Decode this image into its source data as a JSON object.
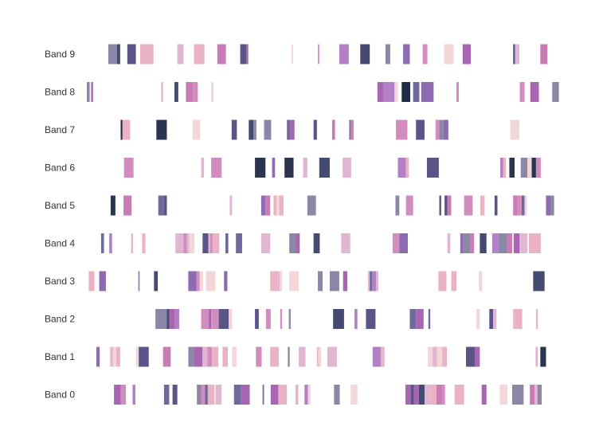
{
  "chart_data": {
    "type": "heatmap",
    "title": "",
    "xlabel": "",
    "ylabel": "",
    "xlim": [
      0,
      100
    ],
    "grid": false,
    "legend": "none",
    "palette": [
      "#f3d6d8",
      "#eab3c3",
      "#e0b6d2",
      "#d28cbe",
      "#c97bb4",
      "#b37fc6",
      "#a865b2",
      "#8c6bb1",
      "#8b88a7",
      "#6e6a9e",
      "#5a5487",
      "#454a70",
      "#2c3550",
      "#1f2a44"
    ],
    "bands": [
      {
        "name": "Band 9",
        "segments": [
          [
            4.5,
            6.3,
            8
          ],
          [
            6.3,
            7.0,
            11
          ],
          [
            8.5,
            10.3,
            10
          ],
          [
            11.2,
            14.0,
            1
          ],
          [
            19.0,
            20.3,
            2
          ],
          [
            22.5,
            24.7,
            1
          ],
          [
            27.4,
            29.2,
            4
          ],
          [
            32.2,
            33.5,
            10
          ],
          [
            33.5,
            33.9,
            6
          ],
          [
            43.0,
            43.3,
            0
          ],
          [
            48.5,
            48.8,
            3
          ],
          [
            53.0,
            55.0,
            5
          ],
          [
            57.4,
            59.4,
            11
          ],
          [
            62.7,
            63.7,
            8
          ],
          [
            66.4,
            67.8,
            7
          ],
          [
            70.5,
            71.5,
            3
          ],
          [
            75.0,
            77.0,
            0
          ],
          [
            78.9,
            80.6,
            6
          ],
          [
            89.5,
            89.9,
            10
          ],
          [
            89.9,
            90.8,
            2
          ],
          [
            95.2,
            96.7,
            4
          ]
        ]
      },
      {
        "name": "Band 8",
        "segments": [
          [
            0.0,
            0.6,
            8
          ],
          [
            0.9,
            1.3,
            6
          ],
          [
            15.6,
            16.0,
            2
          ],
          [
            18.4,
            19.2,
            11
          ],
          [
            20.8,
            22.3,
            4
          ],
          [
            22.3,
            23.3,
            3
          ],
          [
            26.1,
            26.6,
            0
          ],
          [
            61.0,
            62.2,
            6
          ],
          [
            62.2,
            64.6,
            5
          ],
          [
            64.6,
            65.3,
            0
          ],
          [
            66.1,
            67.9,
            13
          ],
          [
            68.5,
            69.8,
            9
          ],
          [
            70.2,
            72.8,
            7
          ],
          [
            77.6,
            78.1,
            3
          ],
          [
            90.9,
            91.9,
            3
          ],
          [
            93.1,
            94.9,
            6
          ],
          [
            97.7,
            99.1,
            8
          ]
        ]
      },
      {
        "name": "Band 7",
        "segments": [
          [
            7.1,
            7.5,
            12
          ],
          [
            7.5,
            9.1,
            1
          ],
          [
            14.6,
            16.8,
            12
          ],
          [
            22.2,
            23.8,
            0
          ],
          [
            30.4,
            31.5,
            10
          ],
          [
            34.0,
            35.0,
            11
          ],
          [
            35.0,
            35.6,
            8
          ],
          [
            37.2,
            38.7,
            8
          ],
          [
            42.0,
            42.7,
            9
          ],
          [
            42.7,
            43.6,
            6
          ],
          [
            47.6,
            48.3,
            10
          ],
          [
            51.5,
            52.1,
            4
          ],
          [
            55.1,
            55.4,
            9
          ],
          [
            55.4,
            56.0,
            4
          ],
          [
            64.9,
            67.3,
            3
          ],
          [
            69.1,
            70.9,
            10
          ],
          [
            73.2,
            74.0,
            3
          ],
          [
            74.0,
            74.9,
            8
          ],
          [
            74.9,
            75.9,
            7
          ],
          [
            88.9,
            90.8,
            0
          ]
        ]
      },
      {
        "name": "Band 6",
        "segments": [
          [
            7.8,
            9.8,
            3
          ],
          [
            24.0,
            24.6,
            2
          ],
          [
            26.1,
            28.3,
            3
          ],
          [
            35.3,
            37.5,
            12
          ],
          [
            38.9,
            39.5,
            7
          ],
          [
            41.5,
            43.4,
            12
          ],
          [
            45.4,
            46.3,
            2
          ],
          [
            48.8,
            51.0,
            11
          ],
          [
            53.7,
            55.5,
            2
          ],
          [
            65.3,
            67.0,
            5
          ],
          [
            67.0,
            67.6,
            1
          ],
          [
            71.4,
            73.9,
            10
          ],
          [
            86.8,
            87.4,
            5
          ],
          [
            87.4,
            88.0,
            1
          ],
          [
            88.7,
            89.8,
            12
          ],
          [
            91.1,
            92.5,
            8
          ],
          [
            92.5,
            93.4,
            0
          ],
          [
            93.4,
            94.3,
            12
          ],
          [
            94.3,
            95.3,
            3
          ]
        ]
      },
      {
        "name": "Band 5",
        "segments": [
          [
            5.0,
            6.0,
            12
          ],
          [
            7.7,
            9.4,
            4
          ],
          [
            15.0,
            16.2,
            9
          ],
          [
            16.2,
            16.8,
            10
          ],
          [
            30.0,
            30.5,
            2
          ],
          [
            36.6,
            37.5,
            7
          ],
          [
            37.5,
            38.5,
            4
          ],
          [
            39.2,
            39.8,
            1
          ],
          [
            39.8,
            40.4,
            0
          ],
          [
            40.4,
            41.3,
            1
          ],
          [
            46.3,
            48.1,
            8
          ],
          [
            64.8,
            65.6,
            8
          ],
          [
            67.0,
            68.5,
            3
          ],
          [
            74.0,
            74.4,
            10
          ],
          [
            75.1,
            75.7,
            10
          ],
          [
            75.7,
            76.5,
            4
          ],
          [
            79.2,
            81.0,
            3
          ],
          [
            82.6,
            83.5,
            1
          ],
          [
            85.6,
            86.2,
            10
          ],
          [
            89.5,
            90.4,
            4
          ],
          [
            90.4,
            91.3,
            3
          ],
          [
            91.3,
            91.9,
            9
          ],
          [
            91.9,
            92.4,
            0
          ],
          [
            96.4,
            97.4,
            7
          ],
          [
            97.4,
            98.1,
            8
          ]
        ]
      },
      {
        "name": "Band 4",
        "segments": [
          [
            3.0,
            3.6,
            9
          ],
          [
            4.7,
            5.3,
            5
          ],
          [
            9.3,
            9.7,
            2
          ],
          [
            11.6,
            12.3,
            1
          ],
          [
            18.6,
            20.3,
            2
          ],
          [
            20.3,
            21.0,
            3
          ],
          [
            21.0,
            21.5,
            2
          ],
          [
            21.5,
            22.6,
            0
          ],
          [
            24.3,
            25.5,
            10
          ],
          [
            25.5,
            25.9,
            2
          ],
          [
            25.9,
            26.4,
            3
          ],
          [
            26.4,
            27.8,
            1
          ],
          [
            29.1,
            29.7,
            9
          ],
          [
            31.3,
            32.6,
            9
          ],
          [
            36.6,
            38.5,
            2
          ],
          [
            42.5,
            43.9,
            8
          ],
          [
            43.9,
            44.7,
            6
          ],
          [
            47.6,
            48.9,
            11
          ],
          [
            53.4,
            55.3,
            2
          ],
          [
            64.2,
            65.6,
            3
          ],
          [
            65.6,
            67.4,
            7
          ],
          [
            75.7,
            76.3,
            2
          ],
          [
            78.4,
            79.0,
            7
          ],
          [
            79.0,
            80.5,
            8
          ],
          [
            80.5,
            81.3,
            4
          ],
          [
            82.5,
            83.9,
            11
          ],
          [
            85.1,
            86.4,
            5
          ],
          [
            86.4,
            88.2,
            8
          ],
          [
            88.2,
            89.3,
            4
          ],
          [
            89.6,
            90.9,
            6
          ],
          [
            91.0,
            92.5,
            2
          ],
          [
            92.8,
            95.3,
            1
          ]
        ]
      },
      {
        "name": "Band 3",
        "segments": [
          [
            0.4,
            1.6,
            1
          ],
          [
            2.6,
            4.0,
            7
          ],
          [
            10.8,
            11.1,
            8
          ],
          [
            14.1,
            14.9,
            11
          ],
          [
            21.3,
            23.0,
            7
          ],
          [
            23.0,
            23.7,
            3
          ],
          [
            23.7,
            24.4,
            0
          ],
          [
            25.0,
            27.0,
            0
          ],
          [
            28.8,
            29.5,
            7
          ],
          [
            38.5,
            40.0,
            1
          ],
          [
            40.0,
            40.5,
            2
          ],
          [
            40.5,
            41.0,
            0
          ],
          [
            42.5,
            44.5,
            0
          ],
          [
            48.5,
            49.5,
            8
          ],
          [
            51.0,
            53.0,
            8
          ],
          [
            53.8,
            54.7,
            6
          ],
          [
            59.0,
            59.4,
            2
          ],
          [
            59.4,
            59.9,
            9
          ],
          [
            59.9,
            60.7,
            5
          ],
          [
            60.7,
            61.2,
            2
          ],
          [
            73.8,
            75.5,
            1
          ],
          [
            76.5,
            77.6,
            1
          ],
          [
            82.3,
            83.0,
            0
          ],
          [
            93.7,
            96.1,
            11
          ]
        ]
      },
      {
        "name": "Band 2",
        "segments": [
          [
            14.4,
            16.8,
            8
          ],
          [
            16.8,
            17.3,
            11
          ],
          [
            17.3,
            18.5,
            6
          ],
          [
            18.5,
            19.4,
            5
          ],
          [
            24.0,
            25.6,
            3
          ],
          [
            25.6,
            26.1,
            6
          ],
          [
            26.1,
            27.7,
            3
          ],
          [
            27.7,
            29.8,
            10
          ],
          [
            29.8,
            30.5,
            0
          ],
          [
            35.3,
            36.1,
            10
          ],
          [
            37.6,
            38.6,
            3
          ],
          [
            40.6,
            41.0,
            3
          ],
          [
            42.4,
            42.8,
            8
          ],
          [
            51.7,
            54.0,
            11
          ],
          [
            56.2,
            56.8,
            5
          ],
          [
            58.6,
            60.6,
            10
          ],
          [
            67.8,
            69.1,
            9
          ],
          [
            69.1,
            70.7,
            6
          ],
          [
            71.7,
            72.1,
            9
          ],
          [
            81.8,
            82.5,
            0
          ],
          [
            84.5,
            85.3,
            10
          ],
          [
            85.3,
            86.0,
            2
          ],
          [
            89.5,
            91.4,
            1
          ],
          [
            94.3,
            94.7,
            2
          ]
        ]
      },
      {
        "name": "Band 1",
        "segments": [
          [
            2.0,
            2.7,
            7
          ],
          [
            4.9,
            5.5,
            2
          ],
          [
            5.5,
            6.2,
            0
          ],
          [
            6.2,
            7.0,
            1
          ],
          [
            10.3,
            10.9,
            0
          ],
          [
            10.9,
            13.0,
            10
          ],
          [
            16.0,
            17.6,
            4
          ],
          [
            21.3,
            22.5,
            8
          ],
          [
            22.5,
            24.3,
            6
          ],
          [
            24.3,
            25.3,
            2
          ],
          [
            25.3,
            26.3,
            3
          ],
          [
            26.3,
            27.6,
            1
          ],
          [
            28.5,
            29.6,
            1
          ],
          [
            30.5,
            31.4,
            0
          ],
          [
            35.5,
            36.7,
            3
          ],
          [
            38.5,
            40.3,
            1
          ],
          [
            42.2,
            42.6,
            8
          ],
          [
            44.5,
            45.9,
            2
          ],
          [
            48.3,
            48.6,
            1
          ],
          [
            48.6,
            49.2,
            0
          ],
          [
            50.5,
            52.5,
            2
          ],
          [
            60.0,
            61.7,
            5
          ],
          [
            61.7,
            62.5,
            2
          ],
          [
            71.6,
            72.6,
            0
          ],
          [
            72.6,
            73.5,
            2
          ],
          [
            73.5,
            74.6,
            0
          ],
          [
            74.6,
            75.6,
            1
          ],
          [
            79.6,
            81.5,
            10
          ],
          [
            81.5,
            82.5,
            6
          ],
          [
            94.2,
            94.7,
            2
          ],
          [
            95.2,
            96.4,
            12
          ]
        ]
      },
      {
        "name": "Band 0",
        "segments": [
          [
            5.7,
            7.1,
            6
          ],
          [
            7.1,
            8.2,
            3
          ],
          [
            9.6,
            10.2,
            5
          ],
          [
            16.2,
            17.3,
            9
          ],
          [
            18.0,
            19.0,
            10
          ],
          [
            23.1,
            24.0,
            8
          ],
          [
            24.0,
            24.8,
            3
          ],
          [
            24.8,
            25.4,
            9
          ],
          [
            25.4,
            26.8,
            1
          ],
          [
            27.0,
            28.3,
            2
          ],
          [
            30.9,
            32.4,
            9
          ],
          [
            32.4,
            34.2,
            6
          ],
          [
            36.9,
            37.2,
            9
          ],
          [
            38.6,
            40.2,
            6
          ],
          [
            40.2,
            42.0,
            1
          ],
          [
            43.8,
            44.4,
            1
          ],
          [
            45.7,
            46.4,
            5
          ],
          [
            46.4,
            47.0,
            0
          ],
          [
            51.9,
            53.1,
            8
          ],
          [
            55.4,
            56.8,
            0
          ],
          [
            66.9,
            68.0,
            6
          ],
          [
            68.0,
            68.7,
            10
          ],
          [
            68.7,
            69.7,
            6
          ],
          [
            69.7,
            70.9,
            11
          ],
          [
            70.9,
            72.0,
            2
          ],
          [
            72.0,
            73.4,
            1
          ],
          [
            73.4,
            74.5,
            4
          ],
          [
            74.5,
            75.2,
            3
          ],
          [
            77.2,
            79.2,
            1
          ],
          [
            82.9,
            83.9,
            6
          ],
          [
            86.7,
            88.3,
            0
          ],
          [
            89.3,
            91.7,
            8
          ],
          [
            93.0,
            94.0,
            4
          ],
          [
            94.0,
            94.6,
            2
          ],
          [
            94.6,
            95.5,
            8
          ]
        ]
      }
    ]
  }
}
